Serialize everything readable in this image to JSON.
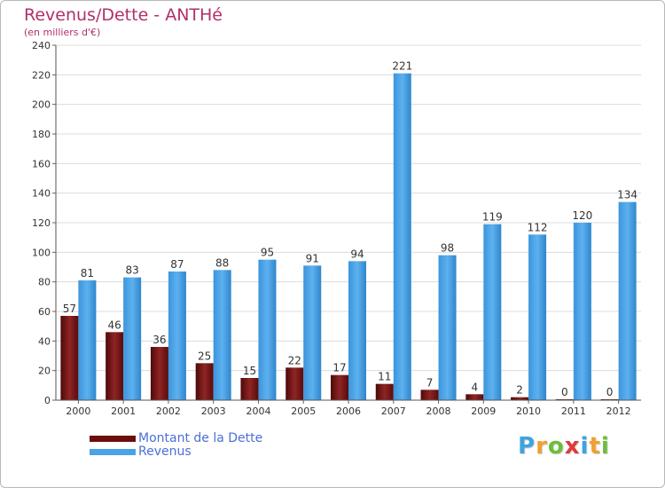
{
  "chart_data": {
    "type": "bar",
    "title": "Revenus/Dette - ANTHé",
    "subtitle": "(en milliers d'€)",
    "categories": [
      "2000",
      "2001",
      "2002",
      "2003",
      "2004",
      "2005",
      "2006",
      "2007",
      "2008",
      "2009",
      "2010",
      "2011",
      "2012"
    ],
    "series": [
      {
        "name": "Montant de la Dette",
        "color": "#7a1414",
        "values": [
          57,
          46,
          36,
          25,
          15,
          22,
          17,
          11,
          7,
          4,
          2,
          0,
          0
        ]
      },
      {
        "name": "Revenus",
        "color": "#4aa3e6",
        "values": [
          81,
          83,
          87,
          88,
          95,
          91,
          94,
          221,
          98,
          119,
          112,
          120,
          134
        ]
      }
    ],
    "yticks": [
      0,
      20,
      40,
      60,
      80,
      100,
      120,
      140,
      160,
      180,
      200,
      220,
      240
    ],
    "ylim": [
      0,
      240
    ],
    "grid": true,
    "legend_position": "bottom-left"
  },
  "legend": {
    "items": [
      {
        "label": "Montant de la Dette",
        "color": "#6b0e0e"
      },
      {
        "label": "Revenus",
        "color": "#4aa3e6"
      }
    ]
  },
  "logo": {
    "letters": [
      "P",
      "r",
      "o",
      "x",
      "i",
      "t",
      "i"
    ],
    "colors": [
      "#3fa3e0",
      "#f0a030",
      "#6bbf3a",
      "#e03a3a",
      "#3fa3e0",
      "#f0a030",
      "#6bbf3a"
    ]
  }
}
